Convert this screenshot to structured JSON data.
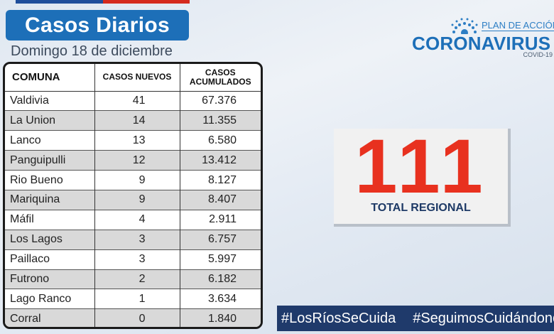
{
  "header": {
    "title": "Casos Diarios",
    "date": "Domingo 18 de diciembre"
  },
  "logo": {
    "plan_text": "PLAN DE ACCIÓN",
    "main_text": "CORONAVIRUS",
    "sub_text": "COVID-19"
  },
  "table": {
    "headers": [
      "COMUNA",
      "CASOS NUEVOS",
      "CASOS ACUMULADOS"
    ],
    "rows": [
      {
        "comuna": "Valdivia",
        "nuevos": "41",
        "acumulados": "67.376"
      },
      {
        "comuna": "La Union",
        "nuevos": "14",
        "acumulados": "11.355"
      },
      {
        "comuna": "Lanco",
        "nuevos": "13",
        "acumulados": "6.580"
      },
      {
        "comuna": "Panguipulli",
        "nuevos": "12",
        "acumulados": "13.412"
      },
      {
        "comuna": "Rio Bueno",
        "nuevos": "9",
        "acumulados": "8.127"
      },
      {
        "comuna": "Mariquina",
        "nuevos": "9",
        "acumulados": "8.407"
      },
      {
        "comuna": "Máfil",
        "nuevos": "4",
        "acumulados": "2.911"
      },
      {
        "comuna": "Los Lagos",
        "nuevos": "3",
        "acumulados": "6.757"
      },
      {
        "comuna": "Paillaco",
        "nuevos": "3",
        "acumulados": "5.997"
      },
      {
        "comuna": "Futrono",
        "nuevos": "2",
        "acumulados": "6.182"
      },
      {
        "comuna": "Lago Ranco",
        "nuevos": "1",
        "acumulados": "3.634"
      },
      {
        "comuna": "Corral",
        "nuevos": "0",
        "acumulados": "1.840"
      }
    ]
  },
  "total": {
    "value": "111",
    "label": "TOTAL REGIONAL"
  },
  "footer": {
    "hashtags": [
      "#LosRíosSeCuida",
      "#SeguimosCuidándonos"
    ]
  },
  "colors": {
    "accent_blue": "#1d6fb8",
    "total_red": "#e8311f",
    "footer_navy": "#1f3a6b"
  }
}
